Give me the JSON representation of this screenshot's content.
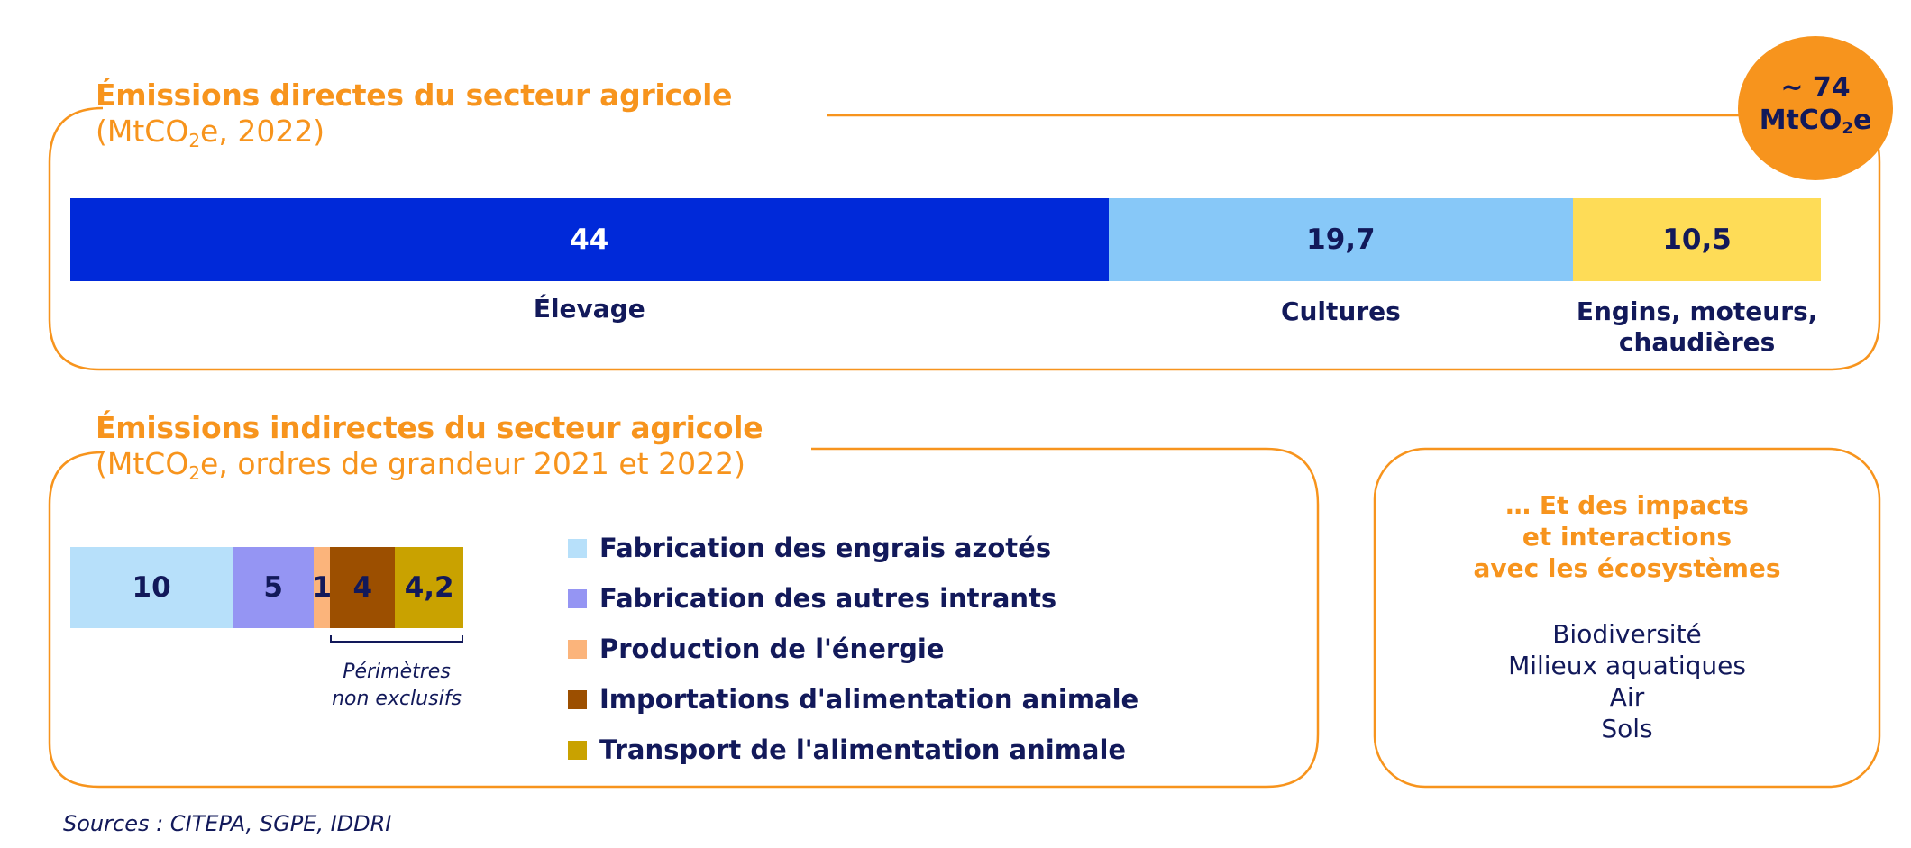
{
  "direct": {
    "title": "Émissions directes du secteur agricole",
    "subtitle_prefix": "(MtCO",
    "subtitle_sub": "2",
    "subtitle_suffix": "e, 2022)",
    "total_line1": "~ 74",
    "total_prefix": "MtCO",
    "total_sub": "2",
    "total_suffix": "e"
  },
  "indirect": {
    "title": "Émissions indirectes du secteur agricole",
    "subtitle_prefix": "(MtCO",
    "subtitle_sub": "2",
    "subtitle_suffix": "e, ordres de grandeur 2021 et 2022)",
    "note_line1": "Périmètres",
    "note_line2": "non exclusifs"
  },
  "impacts": {
    "title_line1": "… Et des impacts",
    "title_line2": "et interactions",
    "title_line3": "avec les écosystèmes",
    "items": [
      "Biodiversité",
      "Milieux aquatiques",
      "Air",
      "Sols"
    ]
  },
  "source": "Sources : CITEPA, SGPE, IDDRI",
  "colors": {
    "accent": "#f7941d",
    "text": "#12195a"
  },
  "chart_data": [
    {
      "type": "bar",
      "orientation": "horizontal-stacked",
      "categories": [
        "Élevage",
        "Cultures",
        "Engins, moteurs, chaudières"
      ],
      "values": [
        44,
        19.7,
        10.5
      ],
      "value_labels": [
        "44",
        "19,7",
        "10,5"
      ],
      "colors": [
        "#0029d9",
        "#87c8f8",
        "#fedc57"
      ],
      "label_colors": [
        "#ffffff",
        "#12195a",
        "#12195a"
      ],
      "category_labels_lines": [
        [
          "Élevage"
        ],
        [
          "Cultures"
        ],
        [
          "Engins, moteurs,",
          "chaudières"
        ]
      ]
    },
    {
      "type": "bar",
      "orientation": "horizontal-stacked",
      "categories": [
        "Fabrication des engrais azotés",
        "Fabrication des autres intrants",
        "Production de l'énergie",
        "Importations d'alimentation animale",
        "Transport de l'alimentation animale"
      ],
      "values": [
        10,
        5,
        1,
        4,
        4.2
      ],
      "value_labels": [
        "10",
        "5",
        "1",
        "4",
        "4,2"
      ],
      "colors": [
        "#b7e0fa",
        "#9595f3",
        "#fbb47b",
        "#9c4f00",
        "#c9a200"
      ],
      "label_colors": [
        "#12195a",
        "#12195a",
        "#12195a",
        "#12195a",
        "#12195a"
      ]
    }
  ]
}
